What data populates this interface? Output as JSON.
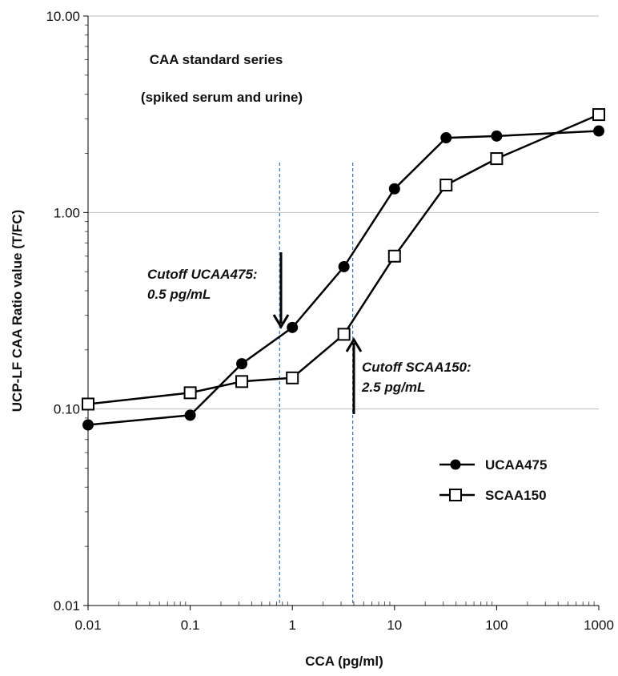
{
  "chart_data": {
    "type": "line",
    "x_scale": "log",
    "y_scale": "log",
    "xlim": [
      0.01,
      1000
    ],
    "ylim": [
      0.01,
      10
    ],
    "x_ticks": [
      0.01,
      0.1,
      1,
      10,
      100,
      1000
    ],
    "x_tick_labels": [
      "0.01",
      "0.1",
      "1",
      "10",
      "100",
      "1000"
    ],
    "y_ticks": [
      0.01,
      0.1,
      1,
      10
    ],
    "y_tick_labels": [
      "0.01",
      "0.10",
      "1.00",
      "10.00"
    ],
    "xlabel": "CCA (pg/ml)",
    "ylabel": "UCP-LF CAA Ratio value (T/FC)",
    "grid": "horizontal major",
    "legend_position": "lower-right",
    "annotation_title": [
      "CAA standard series",
      "(spiked serum and urine)"
    ],
    "series": [
      {
        "name": "UCAA475",
        "marker": "filled-circle",
        "color": "#000000",
        "x": [
          0.01,
          0.1,
          0.32,
          1,
          3.2,
          10,
          32,
          100,
          1000
        ],
        "y": [
          0.083,
          0.093,
          0.17,
          0.26,
          0.53,
          1.32,
          2.4,
          2.45,
          2.6
        ]
      },
      {
        "name": "SCAA150",
        "marker": "open-square",
        "color": "#000000",
        "x": [
          0.01,
          0.1,
          0.32,
          1,
          3.2,
          10,
          32,
          100,
          1000
        ],
        "y": [
          0.106,
          0.121,
          0.138,
          0.144,
          0.24,
          0.6,
          1.38,
          1.88,
          3.15
        ]
      }
    ],
    "cutoffs": [
      {
        "label_line1": "Cutoff UCAA475:",
        "label_line2": "0.5 pg/mL",
        "x": 0.75,
        "arrow": "down",
        "line_color": "#2e75b6"
      },
      {
        "label_line1": "Cutoff SCAA150:",
        "label_line2": "2.5 pg/mL",
        "x": 3.9,
        "arrow": "up",
        "line_color": "#2e75b6"
      }
    ]
  }
}
